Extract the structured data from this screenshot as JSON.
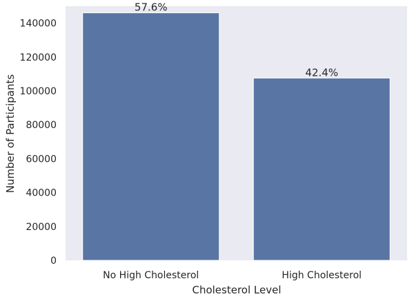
{
  "chart_data": {
    "type": "bar",
    "categories": [
      "No High Cholesterol",
      "High Cholesterol"
    ],
    "values": [
      146089,
      107591
    ],
    "data_labels": [
      "57.6%",
      "42.4%"
    ],
    "xlabel": "Cholesterol Level",
    "ylabel": "Number of Participants",
    "ylim": [
      0,
      150000
    ],
    "yticks": [
      0,
      20000,
      40000,
      60000,
      80000,
      100000,
      120000,
      140000
    ],
    "ytick_labels": [
      "0",
      "20000",
      "40000",
      "60000",
      "80000",
      "100000",
      "120000",
      "140000"
    ],
    "grid": false,
    "legend": "none",
    "colors": {
      "bar": "#5875a4",
      "plot_background": "#eaeaf2",
      "text": "#262626"
    }
  }
}
